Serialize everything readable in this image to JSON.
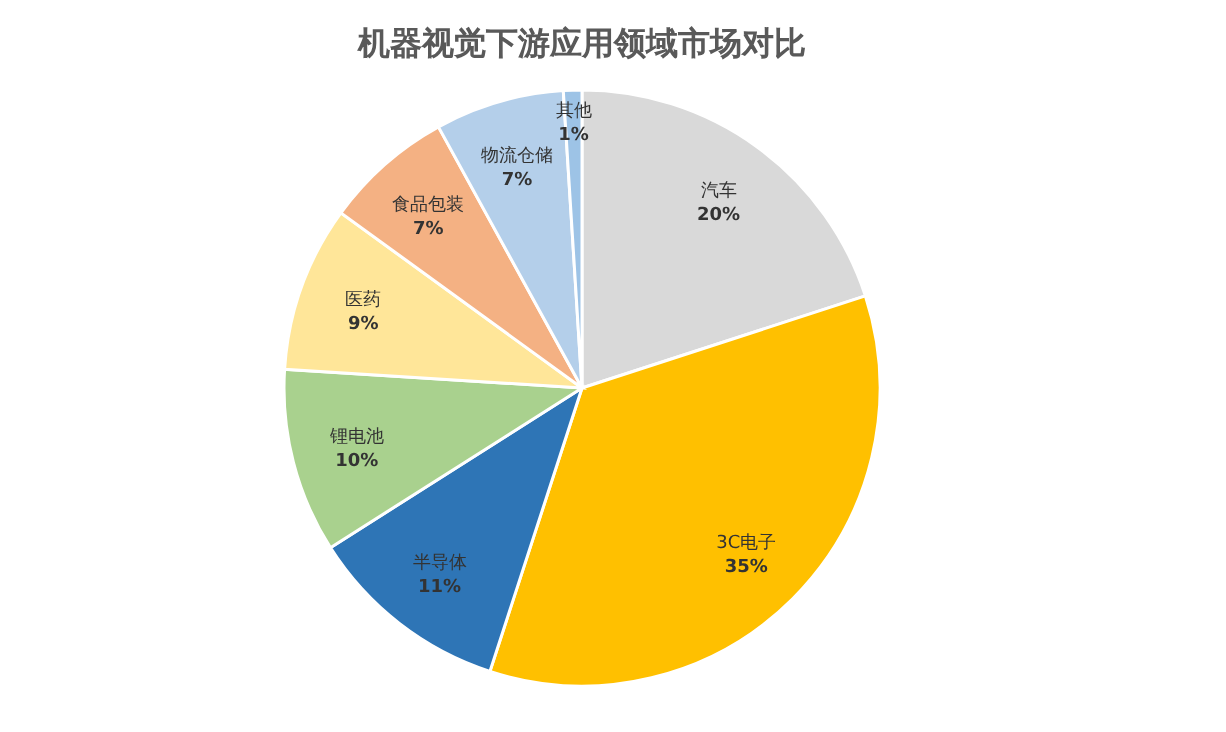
{
  "chart_data": {
    "type": "pie",
    "title": "机器视觉下游应用领域市场对比",
    "categories": [
      "汽车",
      "3C电子",
      "半导体",
      "锂电池",
      "医药",
      "食品包装",
      "物流仓储",
      "其他"
    ],
    "values": [
      20,
      35,
      11,
      10,
      9,
      7,
      7,
      1
    ],
    "value_labels": [
      "20%",
      "35%",
      "11%",
      "10%",
      "9%",
      "7%",
      "7%",
      "1%"
    ],
    "colors": [
      "#d9d9d9",
      "#ffc000",
      "#2e75b6",
      "#a9d18e",
      "#ffe699",
      "#f4b183",
      "#b4cfea",
      "#9dc3e6"
    ]
  }
}
